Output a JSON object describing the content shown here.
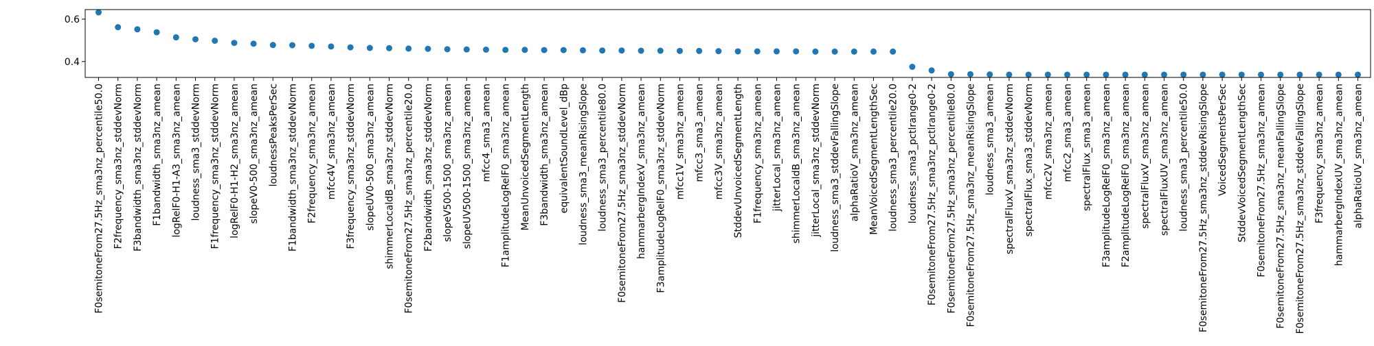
{
  "chart_data": {
    "type": "scatter",
    "title": "",
    "xlabel": "",
    "ylabel": "",
    "ylim": [
      0.325,
      0.645
    ],
    "yticks": [
      0.4,
      0.6
    ],
    "grid": false,
    "marker_color": "#1f77b4",
    "categories": [
      "F0semitoneFrom27.5Hz_sma3nz_percentile50.0",
      "F2frequency_sma3nz_stddevNorm",
      "F3bandwidth_sma3nz_stddevNorm",
      "F1bandwidth_sma3nz_amean",
      "logRelF0-H1-A3_sma3nz_amean",
      "loudness_sma3_stddevNorm",
      "F1frequency_sma3nz_stddevNorm",
      "logRelF0-H1-H2_sma3nz_amean",
      "slopeV0-500_sma3nz_amean",
      "loudnessPeaksPerSec",
      "F1bandwidth_sma3nz_stddevNorm",
      "F2frequency_sma3nz_amean",
      "mfcc4V_sma3nz_amean",
      "F3frequency_sma3nz_stddevNorm",
      "slopeUV0-500_sma3nz_amean",
      "shimmerLocaldB_sma3nz_stddevNorm",
      "F0semitoneFrom27.5Hz_sma3nz_percentile20.0",
      "F2bandwidth_sma3nz_stddevNorm",
      "slopeV500-1500_sma3nz_amean",
      "slopeUV500-1500_sma3nz_amean",
      "mfcc4_sma3_amean",
      "F1amplitudeLogRelF0_sma3nz_amean",
      "MeanUnvoicedSegmentLength",
      "F3bandwidth_sma3nz_amean",
      "equivalentSoundLevel_dBp",
      "loudness_sma3_meanRisingSlope",
      "loudness_sma3_percentile80.0",
      "F0semitoneFrom27.5Hz_sma3nz_stddevNorm",
      "hammarbergIndexV_sma3nz_amean",
      "F3amplitudeLogRelF0_sma3nz_stddevNorm",
      "mfcc1V_sma3nz_amean",
      "mfcc3_sma3_amean",
      "mfcc3V_sma3nz_amean",
      "StddevUnvoicedSegmentLength",
      "F1frequency_sma3nz_amean",
      "jitterLocal_sma3nz_amean",
      "shimmerLocaldB_sma3nz_amean",
      "jitterLocal_sma3nz_stddevNorm",
      "loudness_sma3_stddevFallingSlope",
      "alphaRatioV_sma3nz_amean",
      "MeanVoicedSegmentLengthSec",
      "loudness_sma3_percentile20.0",
      "loudness_sma3_pctlrange0-2",
      "F0semitoneFrom27.5Hz_sma3nz_pctlrange0-2",
      "F0semitoneFrom27.5Hz_sma3nz_percentile80.0",
      "F0semitoneFrom27.5Hz_sma3nz_meanRisingSlope",
      "loudness_sma3_amean",
      "spectralFluxV_sma3nz_stddevNorm",
      "spectralFlux_sma3_stddevNorm",
      "mfcc2V_sma3nz_amean",
      "mfcc2_sma3_amean",
      "spectralFlux_sma3_amean",
      "F3amplitudeLogRelF0_sma3nz_amean",
      "F2amplitudeLogRelF0_sma3nz_amean",
      "spectralFluxV_sma3nz_amean",
      "spectralFluxUV_sma3nz_amean",
      "loudness_sma3_percentile50.0",
      "F0semitoneFrom27.5Hz_sma3nz_stddevRisingSlope",
      "VoicedSegmentsPerSec",
      "StddevVoicedSegmentLengthSec",
      "F0semitoneFrom27.5Hz_sma3nz_amean",
      "F0semitoneFrom27.5Hz_sma3nz_meanFallingSlope",
      "F0semitoneFrom27.5Hz_sma3nz_stddevFallingSlope",
      "F3frequency_sma3nz_amean",
      "hammarbergIndexUV_sma3nz_amean",
      "alphaRatioUV_sma3nz_amean"
    ],
    "values": [
      0.632,
      0.562,
      0.552,
      0.538,
      0.514,
      0.505,
      0.498,
      0.488,
      0.484,
      0.478,
      0.477,
      0.474,
      0.471,
      0.467,
      0.464,
      0.463,
      0.461,
      0.46,
      0.458,
      0.457,
      0.456,
      0.455,
      0.455,
      0.454,
      0.454,
      0.453,
      0.452,
      0.452,
      0.451,
      0.451,
      0.45,
      0.45,
      0.449,
      0.448,
      0.448,
      0.448,
      0.448,
      0.447,
      0.447,
      0.447,
      0.447,
      0.447,
      0.375,
      0.358,
      0.34,
      0.34,
      0.339,
      0.338,
      0.338,
      0.338,
      0.338,
      0.338,
      0.338,
      0.338,
      0.338,
      0.338,
      0.338,
      0.338,
      0.338,
      0.338,
      0.338,
      0.338,
      0.338,
      0.338,
      0.338,
      0.338
    ]
  }
}
